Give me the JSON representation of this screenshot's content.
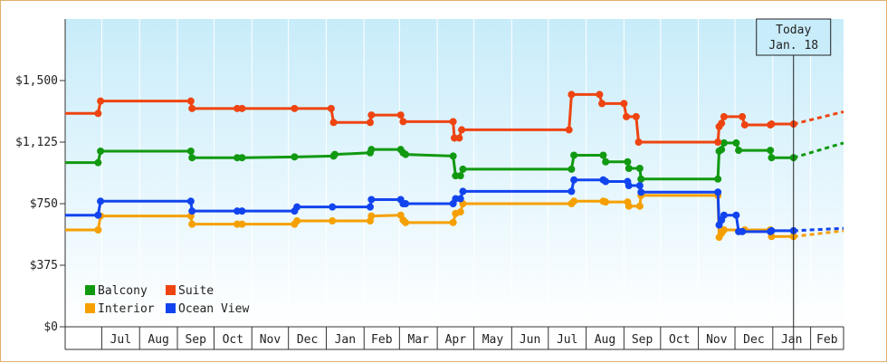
{
  "chart_data": {
    "type": "line",
    "title": "",
    "xlabel": "",
    "ylabel": "",
    "ylim": [
      0,
      1875
    ],
    "y_ticks": [
      {
        "value": 0,
        "label": "$0"
      },
      {
        "value": 375,
        "label": "$375"
      },
      {
        "value": 750,
        "label": "$750"
      },
      {
        "value": 1125,
        "label": "$1,125"
      },
      {
        "value": 1500,
        "label": "$1,500"
      }
    ],
    "x_months": [
      "Jul",
      "Aug",
      "Sep",
      "Oct",
      "Nov",
      "Dec",
      "Jan",
      "Feb",
      "Mar",
      "Apr",
      "May",
      "Jun",
      "Jul",
      "Aug",
      "Sep",
      "Oct",
      "Nov",
      "Dec",
      "Jan",
      "Feb"
    ],
    "xlim": [
      "2019-06-01",
      "2021-02-28"
    ],
    "grid": "vertical",
    "background_gradient": [
      "#c8ecfa",
      "#ffffff"
    ],
    "today": {
      "date": "2021-01-18",
      "label_line1": "Today",
      "label_line2": "Jan. 18"
    },
    "legend_position": "bottom-left",
    "series": [
      {
        "name": "Balcony",
        "color": "#119911",
        "points": [
          [
            "2019-06-01",
            1000
          ],
          [
            "2019-06-28",
            1000
          ],
          [
            "2019-06-30",
            1070
          ],
          [
            "2019-09-12",
            1070
          ],
          [
            "2019-09-13",
            1030
          ],
          [
            "2019-10-20",
            1030
          ],
          [
            "2019-10-24",
            1030
          ],
          [
            "2019-12-06",
            1035
          ],
          [
            "2020-01-07",
            1040
          ],
          [
            "2020-01-08",
            1050
          ],
          [
            "2020-02-06",
            1060
          ],
          [
            "2020-02-07",
            1080
          ],
          [
            "2020-03-02",
            1080
          ],
          [
            "2020-03-04",
            1060
          ],
          [
            "2020-03-06",
            1050
          ],
          [
            "2020-04-14",
            1040
          ],
          [
            "2020-04-16",
            920
          ],
          [
            "2020-04-20",
            920
          ],
          [
            "2020-04-22",
            960
          ],
          [
            "2020-07-20",
            960
          ],
          [
            "2020-07-22",
            1045
          ],
          [
            "2020-08-15",
            1045
          ],
          [
            "2020-08-17",
            1005
          ],
          [
            "2020-08-27",
            1005
          ],
          [
            "2020-09-04",
            1005
          ],
          [
            "2020-09-05",
            965
          ],
          [
            "2020-09-14",
            965
          ],
          [
            "2020-09-15",
            900
          ],
          [
            "2020-11-17",
            900
          ],
          [
            "2020-11-18",
            1070
          ],
          [
            "2020-11-20",
            1080
          ],
          [
            "2020-11-22",
            1120
          ],
          [
            "2020-12-02",
            1120
          ],
          [
            "2020-12-04",
            1075
          ],
          [
            "2020-12-30",
            1075
          ],
          [
            "2020-12-31",
            1030
          ],
          [
            "2021-01-18",
            1030
          ]
        ],
        "forecast": [
          [
            "2021-01-18",
            1030
          ],
          [
            "2021-02-28",
            1120
          ]
        ]
      },
      {
        "name": "Suite",
        "color": "#ee4411",
        "points": [
          [
            "2019-06-01",
            1300
          ],
          [
            "2019-06-28",
            1300
          ],
          [
            "2019-06-30",
            1375
          ],
          [
            "2019-09-12",
            1375
          ],
          [
            "2019-09-13",
            1330
          ],
          [
            "2019-10-20",
            1330
          ],
          [
            "2019-10-24",
            1330
          ],
          [
            "2019-12-06",
            1330
          ],
          [
            "2020-01-05",
            1330
          ],
          [
            "2020-01-07",
            1245
          ],
          [
            "2020-02-06",
            1245
          ],
          [
            "2020-02-07",
            1290
          ],
          [
            "2020-03-02",
            1290
          ],
          [
            "2020-03-04",
            1250
          ],
          [
            "2020-04-14",
            1250
          ],
          [
            "2020-04-15",
            1150
          ],
          [
            "2020-04-19",
            1150
          ],
          [
            "2020-04-21",
            1200
          ],
          [
            "2020-07-18",
            1200
          ],
          [
            "2020-07-20",
            1415
          ],
          [
            "2020-08-12",
            1415
          ],
          [
            "2020-08-14",
            1360
          ],
          [
            "2020-09-01",
            1360
          ],
          [
            "2020-09-03",
            1280
          ],
          [
            "2020-09-11",
            1280
          ],
          [
            "2020-09-13",
            1125
          ],
          [
            "2020-11-17",
            1125
          ],
          [
            "2020-11-18",
            1220
          ],
          [
            "2020-11-20",
            1240
          ],
          [
            "2020-11-22",
            1280
          ],
          [
            "2020-12-07",
            1280
          ],
          [
            "2020-12-09",
            1230
          ],
          [
            "2020-12-30",
            1230
          ],
          [
            "2020-12-31",
            1235
          ],
          [
            "2021-01-18",
            1235
          ]
        ],
        "forecast": [
          [
            "2021-01-18",
            1235
          ],
          [
            "2021-02-28",
            1310
          ]
        ]
      },
      {
        "name": "Interior",
        "color": "#f5a000",
        "points": [
          [
            "2019-06-01",
            590
          ],
          [
            "2019-06-28",
            590
          ],
          [
            "2019-06-30",
            675
          ],
          [
            "2019-09-12",
            675
          ],
          [
            "2019-09-13",
            625
          ],
          [
            "2019-10-20",
            625
          ],
          [
            "2019-10-24",
            625
          ],
          [
            "2019-12-06",
            625
          ],
          [
            "2019-12-08",
            645
          ],
          [
            "2020-01-06",
            645
          ],
          [
            "2020-02-06",
            645
          ],
          [
            "2020-02-07",
            675
          ],
          [
            "2020-03-02",
            680
          ],
          [
            "2020-03-04",
            650
          ],
          [
            "2020-03-06",
            635
          ],
          [
            "2020-04-14",
            635
          ],
          [
            "2020-04-16",
            690
          ],
          [
            "2020-04-20",
            700
          ],
          [
            "2020-04-22",
            750
          ],
          [
            "2020-07-20",
            750
          ],
          [
            "2020-07-22",
            765
          ],
          [
            "2020-08-15",
            765
          ],
          [
            "2020-08-17",
            760
          ],
          [
            "2020-09-04",
            760
          ],
          [
            "2020-09-05",
            735
          ],
          [
            "2020-09-14",
            735
          ],
          [
            "2020-09-15",
            800
          ],
          [
            "2020-11-17",
            800
          ],
          [
            "2020-11-18",
            545
          ],
          [
            "2020-11-20",
            570
          ],
          [
            "2020-11-22",
            590
          ],
          [
            "2020-12-07",
            590
          ],
          [
            "2020-12-09",
            590
          ],
          [
            "2020-12-30",
            590
          ],
          [
            "2020-12-31",
            550
          ],
          [
            "2021-01-18",
            550
          ]
        ],
        "forecast": [
          [
            "2021-01-18",
            550
          ],
          [
            "2021-02-28",
            585
          ]
        ]
      },
      {
        "name": "Ocean View",
        "color": "#1144ee",
        "points": [
          [
            "2019-06-01",
            680
          ],
          [
            "2019-06-28",
            680
          ],
          [
            "2019-06-30",
            765
          ],
          [
            "2019-09-12",
            765
          ],
          [
            "2019-09-13",
            705
          ],
          [
            "2019-10-20",
            705
          ],
          [
            "2019-10-24",
            705
          ],
          [
            "2019-12-06",
            705
          ],
          [
            "2019-12-08",
            730
          ],
          [
            "2020-01-06",
            730
          ],
          [
            "2020-02-06",
            730
          ],
          [
            "2020-02-07",
            775
          ],
          [
            "2020-03-02",
            775
          ],
          [
            "2020-03-04",
            750
          ],
          [
            "2020-03-06",
            750
          ],
          [
            "2020-04-14",
            750
          ],
          [
            "2020-04-16",
            780
          ],
          [
            "2020-04-20",
            780
          ],
          [
            "2020-04-22",
            825
          ],
          [
            "2020-07-20",
            825
          ],
          [
            "2020-07-22",
            895
          ],
          [
            "2020-08-15",
            895
          ],
          [
            "2020-08-17",
            885
          ],
          [
            "2020-09-04",
            885
          ],
          [
            "2020-09-05",
            860
          ],
          [
            "2020-09-14",
            860
          ],
          [
            "2020-09-15",
            820
          ],
          [
            "2020-11-17",
            820
          ],
          [
            "2020-11-18",
            620
          ],
          [
            "2020-11-20",
            650
          ],
          [
            "2020-11-22",
            680
          ],
          [
            "2020-12-02",
            680
          ],
          [
            "2020-12-04",
            580
          ],
          [
            "2020-12-07",
            580
          ],
          [
            "2020-12-30",
            580
          ],
          [
            "2020-12-31",
            585
          ],
          [
            "2021-01-18",
            585
          ]
        ],
        "forecast": [
          [
            "2021-01-18",
            585
          ],
          [
            "2021-02-28",
            600
          ]
        ]
      }
    ],
    "legend_order": [
      "Balcony",
      "Suite",
      "Interior",
      "Ocean View"
    ]
  }
}
